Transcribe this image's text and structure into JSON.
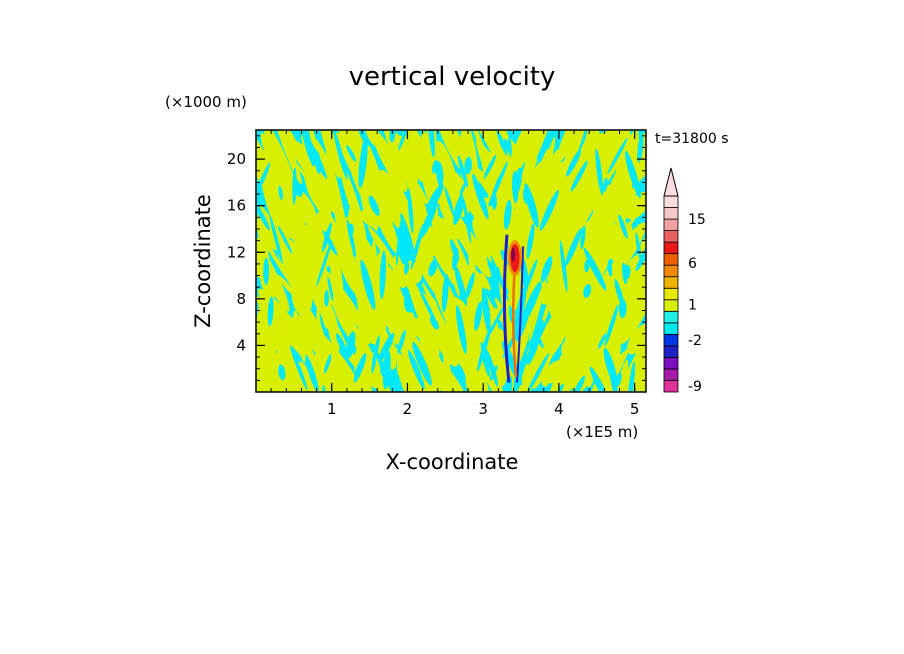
{
  "chart_data": {
    "type": "heatmap",
    "title": "vertical velocity",
    "xlabel": "X-coordinate",
    "ylabel": "Z-coordinate",
    "x_unit": "(×1E5 m)",
    "y_unit": "(×1000 m)",
    "time_label": "t=31800 s",
    "xlim": [
      0,
      5.15
    ],
    "ylim": [
      0,
      22.5
    ],
    "x_ticks": [
      1,
      2,
      3,
      4,
      5
    ],
    "y_ticks": [
      4,
      8,
      12,
      16,
      20
    ],
    "colorbar": {
      "labeled_levels": [
        "15",
        "6",
        "1",
        "-2",
        "-9"
      ],
      "colors": [
        "#e0309a",
        "#a818a8",
        "#7a10c0",
        "#2020c8",
        "#0038e8",
        "#00e8f0",
        "#20f0e8",
        "#d8f000",
        "#e8e800",
        "#f0b400",
        "#f08800",
        "#f06000",
        "#e81818",
        "#e86060",
        "#f0a0a0",
        "#f8c8c8",
        "#fcdcdc"
      ],
      "background_color": "#00e8f8",
      "dominant_positive_color": "#d8f000",
      "extend_max_arrow": true
    },
    "features": {
      "updraft_core": {
        "x": 3.42,
        "z_min": 0.8,
        "z_max": 13.5,
        "peak_z": 11.5,
        "color": "#e81818"
      },
      "downdraft_edges": {
        "color": "#2020c8"
      }
    }
  }
}
